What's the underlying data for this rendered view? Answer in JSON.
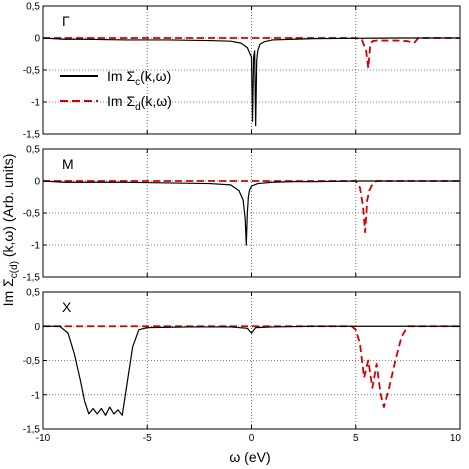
{
  "figure": {
    "ylabel": "Im Σ",
    "ylabel_sub": "c(d)",
    "ylabel_tail": " (k,ω) (Arb. units)",
    "xlabel": "ω (eV)"
  },
  "legend": {
    "c_prefix": "Im Σ",
    "c_sub": "c",
    "c_suffix": "(k,ω)",
    "d_prefix": "Im Σ",
    "d_sub": "d",
    "d_suffix": "(k,ω)"
  },
  "colors": {
    "series_c": "#000000",
    "series_d": "#d40000",
    "grid": "#555555"
  },
  "chart_data": [
    {
      "type": "line",
      "panel_label": "Γ",
      "xlim": [
        -10,
        10
      ],
      "ylim": [
        -1.5,
        0.5
      ],
      "x_ticks": [
        "-10",
        "-5",
        "0",
        "5",
        "10"
      ],
      "y_ticks": [
        "0,5",
        "0",
        "-0,5",
        "-1",
        "-1,5"
      ],
      "grid": true,
      "legend_position": "left-center",
      "series": [
        {
          "name": "Im Σc(k,ω)",
          "style": "solid",
          "x": [
            -10,
            -9,
            -8,
            -6,
            -4,
            -2,
            -1,
            -0.5,
            -0.2,
            0,
            0.05,
            0.1,
            0.15,
            0.2,
            0.25,
            0.3,
            0.4,
            0.6,
            1,
            2,
            3,
            5,
            7,
            10
          ],
          "y": [
            0,
            -0.02,
            -0.02,
            -0.03,
            -0.03,
            -0.04,
            -0.05,
            -0.08,
            -0.15,
            -0.3,
            -1.3,
            -0.3,
            -0.2,
            -1.37,
            -0.35,
            -0.2,
            -0.1,
            -0.06,
            -0.03,
            -0.02,
            -0.01,
            -0.005,
            0,
            0
          ]
        },
        {
          "name": "Im Σd(k,ω)",
          "style": "dashed",
          "x": [
            -10,
            5,
            5.3,
            5.5,
            5.6,
            5.7,
            5.8,
            6,
            6.5,
            7,
            7.5,
            7.8,
            8,
            10
          ],
          "y": [
            0,
            0,
            -0.03,
            -0.2,
            -0.47,
            -0.1,
            -0.05,
            -0.04,
            -0.04,
            -0.04,
            -0.05,
            -0.08,
            0,
            0
          ]
        }
      ]
    },
    {
      "type": "line",
      "panel_label": "M",
      "xlim": [
        -10,
        10
      ],
      "ylim": [
        -1.5,
        0.5
      ],
      "x_ticks": [
        "-10",
        "-5",
        "0",
        "5",
        "10"
      ],
      "y_ticks": [
        "0,5",
        "0",
        "-0,5",
        "-1",
        "-1,5"
      ],
      "grid": true,
      "series": [
        {
          "name": "Im Σc(k,ω)",
          "style": "solid",
          "x": [
            -10,
            -9,
            -8,
            -6,
            -4,
            -2,
            -1,
            -0.6,
            -0.4,
            -0.3,
            -0.25,
            -0.2,
            -0.15,
            -0.1,
            0,
            0.3,
            1,
            2,
            3,
            5,
            7,
            10
          ],
          "y": [
            0,
            -0.02,
            -0.02,
            -0.02,
            -0.03,
            -0.04,
            -0.06,
            -0.15,
            -0.3,
            -0.6,
            -1.0,
            -0.5,
            -0.25,
            -0.15,
            -0.08,
            -0.04,
            -0.02,
            -0.01,
            -0.01,
            0,
            0,
            0
          ]
        },
        {
          "name": "Im Σd(k,ω)",
          "style": "dashed",
          "x": [
            -10,
            5,
            5.2,
            5.35,
            5.45,
            5.55,
            5.65,
            5.8,
            6,
            10
          ],
          "y": [
            0,
            0,
            -0.1,
            -0.4,
            -0.8,
            -0.3,
            -0.15,
            -0.05,
            0,
            0
          ]
        }
      ]
    },
    {
      "type": "line",
      "panel_label": "X",
      "xlim": [
        -10,
        10
      ],
      "ylim": [
        -1.5,
        0.5
      ],
      "x_ticks": [
        "-10",
        "-5",
        "0",
        "5",
        "10"
      ],
      "y_ticks": [
        "0,5",
        "0",
        "-0,5",
        "-1",
        "-1,5"
      ],
      "grid": true,
      "series": [
        {
          "name": "Im Σc(k,ω)",
          "style": "solid",
          "x": [
            -10,
            -9.2,
            -8.8,
            -8.5,
            -8.2,
            -8.0,
            -7.8,
            -7.6,
            -7.4,
            -7.2,
            -7.0,
            -6.8,
            -6.6,
            -6.4,
            -6.2,
            -6.0,
            -5.7,
            -5.4,
            -5,
            -3,
            -1,
            -0.2,
            0,
            0.2,
            1,
            3,
            5,
            10
          ],
          "y": [
            0,
            0,
            -0.1,
            -0.4,
            -0.8,
            -1.1,
            -1.28,
            -1.2,
            -1.28,
            -1.2,
            -1.3,
            -1.18,
            -1.28,
            -1.22,
            -1.3,
            -0.9,
            -0.3,
            -0.05,
            -0.02,
            -0.01,
            -0.01,
            -0.03,
            -0.1,
            -0.02,
            -0.01,
            0,
            0,
            0
          ]
        },
        {
          "name": "Im Σd(k,ω)",
          "style": "dashed",
          "x": [
            -10,
            4.8,
            5.0,
            5.2,
            5.4,
            5.6,
            5.8,
            6.0,
            6.2,
            6.35,
            6.6,
            6.9,
            7.2,
            7.5,
            8,
            10
          ],
          "y": [
            0,
            0,
            -0.05,
            -0.25,
            -0.75,
            -0.5,
            -0.9,
            -0.55,
            -1.0,
            -1.18,
            -0.9,
            -0.5,
            -0.15,
            0,
            0,
            0
          ]
        }
      ]
    }
  ]
}
